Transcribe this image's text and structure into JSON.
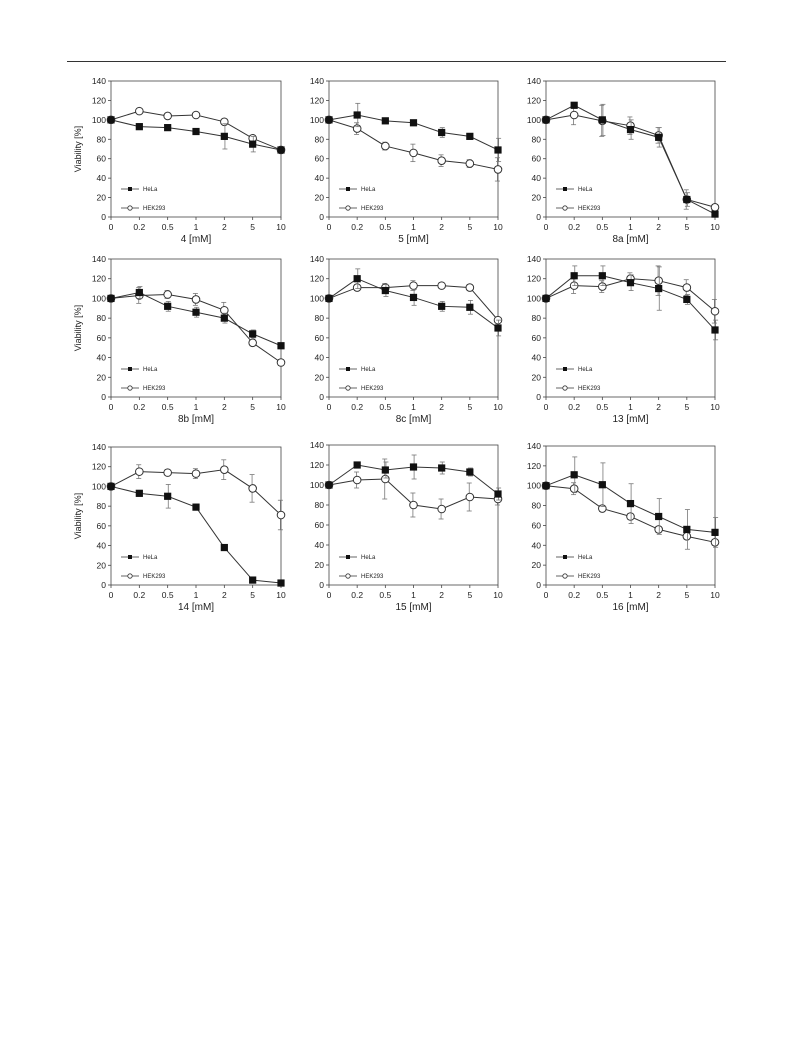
{
  "chart_data": [
    {
      "type": "line",
      "xlabel": "4 [mM]",
      "ylabel": "Viability [%]",
      "categories": [
        "0",
        "0.2",
        "0.5",
        "1",
        "2",
        "5",
        "10"
      ],
      "ylim": [
        0,
        140
      ],
      "yticks": [
        0,
        20,
        40,
        60,
        80,
        100,
        120,
        140
      ],
      "legend_position": "bottom-left",
      "series": [
        {
          "name": "HeLa",
          "marker": "filled-square",
          "values": [
            100,
            93,
            92,
            88,
            83,
            75,
            69
          ],
          "errors": [
            2,
            3,
            3,
            3,
            13,
            8,
            3
          ]
        },
        {
          "name": "HEK293",
          "marker": "open-circle",
          "values": [
            100,
            109,
            104,
            105,
            98,
            81,
            69
          ],
          "errors": [
            2,
            2,
            2,
            2,
            2,
            3,
            3
          ]
        }
      ]
    },
    {
      "type": "line",
      "xlabel": "5 [mM]",
      "ylabel": "",
      "categories": [
        "0",
        "0.2",
        "0.5",
        "1",
        "2",
        "5",
        "10"
      ],
      "ylim": [
        0,
        140
      ],
      "yticks": [
        0,
        20,
        40,
        60,
        80,
        100,
        120,
        140
      ],
      "legend_position": "bottom-left",
      "series": [
        {
          "name": "HeLa",
          "marker": "filled-square",
          "values": [
            100,
            105,
            99,
            97,
            87,
            83,
            69
          ],
          "errors": [
            2,
            12,
            2,
            2,
            5,
            3,
            12
          ]
        },
        {
          "name": "HEK293",
          "marker": "open-circle",
          "values": [
            100,
            91,
            73,
            66,
            58,
            55,
            49
          ],
          "errors": [
            2,
            6,
            4,
            9,
            6,
            4,
            12
          ]
        }
      ]
    },
    {
      "type": "line",
      "xlabel": "8a [mM]",
      "ylabel": "",
      "categories": [
        "0",
        "0.2",
        "0.5",
        "1",
        "2",
        "5",
        "10"
      ],
      "ylim": [
        0,
        140
      ],
      "yticks": [
        0,
        20,
        40,
        60,
        80,
        100,
        120,
        140
      ],
      "legend_position": "bottom-left",
      "series": [
        {
          "name": "HeLa",
          "marker": "filled-square",
          "values": [
            100,
            115,
            100,
            90,
            82,
            18,
            3
          ],
          "errors": [
            2,
            3,
            16,
            10,
            10,
            7,
            2
          ]
        },
        {
          "name": "HEK293",
          "marker": "open-circle",
          "values": [
            100,
            105,
            99,
            94,
            84,
            18,
            10
          ],
          "errors": [
            2,
            10,
            16,
            9,
            8,
            10,
            3
          ]
        }
      ]
    },
    {
      "type": "line",
      "xlabel": "8b [mM]",
      "ylabel": "Viability [%]",
      "categories": [
        "0",
        "0.2",
        "0.5",
        "1",
        "2",
        "5",
        "10"
      ],
      "ylim": [
        0,
        140
      ],
      "yticks": [
        0,
        20,
        40,
        60,
        80,
        100,
        120,
        140
      ],
      "legend_position": "bottom-left",
      "series": [
        {
          "name": "HeLa",
          "marker": "filled-square",
          "values": [
            100,
            106,
            92,
            86,
            80,
            64,
            52
          ],
          "errors": [
            2,
            6,
            5,
            5,
            5,
            4,
            3
          ]
        },
        {
          "name": "HEK293",
          "marker": "open-circle",
          "values": [
            100,
            103,
            104,
            99,
            88,
            55,
            35
          ],
          "errors": [
            2,
            8,
            4,
            6,
            8,
            3,
            3
          ]
        }
      ]
    },
    {
      "type": "line",
      "xlabel": "8c [mM]",
      "ylabel": "",
      "categories": [
        "0",
        "0.2",
        "0.5",
        "1",
        "2",
        "5",
        "10"
      ],
      "ylim": [
        0,
        140
      ],
      "yticks": [
        0,
        20,
        40,
        60,
        80,
        100,
        120,
        140
      ],
      "legend_position": "bottom-left",
      "series": [
        {
          "name": "HeLa",
          "marker": "filled-square",
          "values": [
            100,
            120,
            108,
            101,
            92,
            91,
            70
          ],
          "errors": [
            2,
            10,
            6,
            8,
            5,
            7,
            8
          ]
        },
        {
          "name": "HEK293",
          "marker": "open-circle",
          "values": [
            100,
            111,
            111,
            113,
            113,
            111,
            78
          ],
          "errors": [
            2,
            3,
            4,
            5,
            3,
            3,
            3
          ]
        }
      ]
    },
    {
      "type": "line",
      "xlabel": "13 [mM]",
      "ylabel": "",
      "categories": [
        "0",
        "0.2",
        "0.5",
        "1",
        "2",
        "5",
        "10"
      ],
      "ylim": [
        0,
        140
      ],
      "yticks": [
        0,
        20,
        40,
        60,
        80,
        100,
        120,
        140
      ],
      "legend_position": "bottom-left",
      "series": [
        {
          "name": "HeLa",
          "marker": "filled-square",
          "values": [
            100,
            123,
            123,
            116,
            110,
            99,
            68
          ],
          "errors": [
            2,
            10,
            10,
            8,
            22,
            5,
            10
          ]
        },
        {
          "name": "HEK293",
          "marker": "open-circle",
          "values": [
            100,
            113,
            112,
            120,
            118,
            111,
            87
          ],
          "errors": [
            2,
            8,
            6,
            6,
            15,
            8,
            12
          ]
        }
      ]
    },
    {
      "type": "line",
      "xlabel": "14 [mM]",
      "ylabel": "Viability [%]",
      "categories": [
        "0",
        "0.2",
        "0.5",
        "1",
        "2",
        "5",
        "10"
      ],
      "ylim": [
        0,
        140
      ],
      "yticks": [
        0,
        20,
        40,
        60,
        80,
        100,
        120,
        140
      ],
      "legend_position": "bottom-left",
      "series": [
        {
          "name": "HeLa",
          "marker": "filled-square",
          "values": [
            100,
            93,
            90,
            79,
            38,
            5,
            2
          ],
          "errors": [
            2,
            3,
            12,
            3,
            3,
            2,
            2
          ]
        },
        {
          "name": "HEK293",
          "marker": "open-circle",
          "values": [
            100,
            115,
            114,
            113,
            117,
            98,
            71
          ],
          "errors": [
            2,
            7,
            3,
            5,
            10,
            14,
            15
          ]
        }
      ]
    },
    {
      "type": "line",
      "xlabel": "15 [mM]",
      "ylabel": "",
      "categories": [
        "0",
        "0.2",
        "0.5",
        "1",
        "2",
        "5",
        "10"
      ],
      "ylim": [
        0,
        140
      ],
      "yticks": [
        0,
        20,
        40,
        60,
        80,
        100,
        120,
        140
      ],
      "legend_position": "bottom-left",
      "series": [
        {
          "name": "HeLa",
          "marker": "filled-square",
          "values": [
            100,
            120,
            115,
            118,
            117,
            113,
            91
          ],
          "errors": [
            2,
            3,
            8,
            12,
            6,
            4,
            6
          ]
        },
        {
          "name": "HEK293",
          "marker": "open-circle",
          "values": [
            100,
            105,
            106,
            80,
            76,
            88,
            86
          ],
          "errors": [
            2,
            8,
            20,
            12,
            10,
            14,
            6
          ]
        }
      ]
    },
    {
      "type": "line",
      "xlabel": "16 [mM]",
      "ylabel": "",
      "categories": [
        "0",
        "0.2",
        "0.5",
        "1",
        "2",
        "5",
        "10"
      ],
      "ylim": [
        0,
        140
      ],
      "yticks": [
        0,
        20,
        40,
        60,
        80,
        100,
        120,
        140
      ],
      "legend_position": "bottom-left",
      "series": [
        {
          "name": "HeLa",
          "marker": "filled-square",
          "values": [
            100,
            111,
            101,
            82,
            69,
            56,
            53
          ],
          "errors": [
            2,
            18,
            22,
            20,
            18,
            20,
            15
          ]
        },
        {
          "name": "HEK293",
          "marker": "open-circle",
          "values": [
            100,
            97,
            77,
            69,
            56,
            49,
            43
          ],
          "errors": [
            2,
            6,
            3,
            3,
            3,
            3,
            3
          ]
        }
      ]
    }
  ]
}
